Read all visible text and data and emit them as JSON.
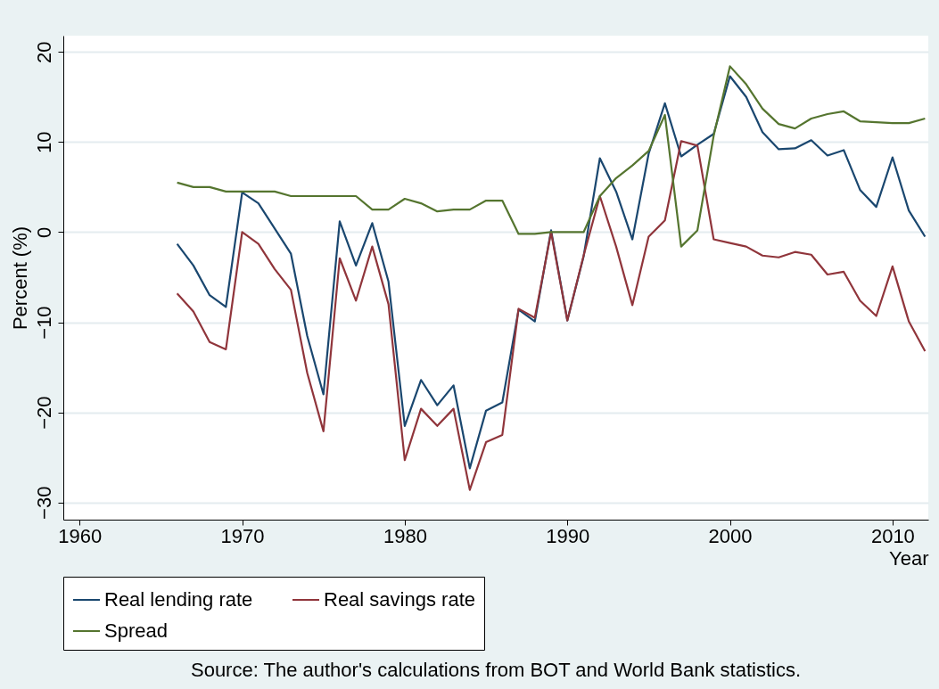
{
  "chart_data": {
    "type": "line",
    "xlabel": "Year",
    "ylabel": "Percent (%)",
    "x": [
      1966,
      1967,
      1968,
      1969,
      1970,
      1971,
      1972,
      1973,
      1974,
      1975,
      1976,
      1977,
      1978,
      1979,
      1980,
      1981,
      1982,
      1983,
      1984,
      1985,
      1986,
      1987,
      1988,
      1989,
      1990,
      1991,
      1992,
      1993,
      1994,
      1995,
      1996,
      1997,
      1998,
      1999,
      2000,
      2001,
      2002,
      2003,
      2004,
      2005,
      2006,
      2007,
      2008,
      2009,
      2010,
      2011,
      2012
    ],
    "series": [
      {
        "name": "Real lending rate",
        "color": "#1a476f",
        "values": [
          -1.3,
          -3.7,
          -7,
          -8.3,
          4.4,
          3.2,
          0.4,
          -2.4,
          -11.5,
          -18,
          1.2,
          -3.7,
          1,
          -5.5,
          -21.5,
          -16.4,
          -19.2,
          -17,
          -26.2,
          -19.8,
          -18.9,
          -8.6,
          -9.9,
          0.2,
          -9.8,
          -2.7,
          8.2,
          4.5,
          -0.8,
          8.7,
          14.3,
          8.4,
          9.7,
          10.9,
          17.3,
          15,
          11.1,
          9.2,
          9.3,
          10.2,
          8.5,
          9.1,
          4.7,
          2.8,
          8.3,
          2.4,
          -0.5
        ]
      },
      {
        "name": "Real savings rate",
        "color": "#90353b",
        "values": [
          -6.8,
          -8.8,
          -12.2,
          -13,
          0,
          -1.3,
          -4.1,
          -6.4,
          -15.6,
          -22.1,
          -2.9,
          -7.6,
          -1.6,
          -8,
          -25.3,
          -19.6,
          -21.5,
          -19.6,
          -28.6,
          -23.3,
          -22.5,
          -8.5,
          -9.5,
          0,
          -9.8,
          -2.6,
          4,
          -1.6,
          -8.1,
          -0.5,
          1.3,
          10.1,
          9.6,
          -0.8,
          -1.2,
          -1.6,
          -2.6,
          -2.8,
          -2.2,
          -2.5,
          -4.7,
          -4.4,
          -7.6,
          -9.3,
          -3.8,
          -9.9,
          -13.2
        ]
      },
      {
        "name": "Spread",
        "color": "#55752f",
        "values": [
          5.5,
          5,
          5,
          4.5,
          4.5,
          4.5,
          4.5,
          4,
          4,
          4,
          4,
          4,
          2.5,
          2.5,
          3.7,
          3.2,
          2.3,
          2.5,
          2.5,
          3.5,
          3.5,
          -0.2,
          -0.2,
          0,
          0,
          0,
          4,
          6,
          7.4,
          9,
          13,
          -1.6,
          0.2,
          10.7,
          18.4,
          16.4,
          13.7,
          12,
          11.5,
          12.6,
          13.1,
          13.4,
          12.3,
          12.2,
          12.1,
          12.1,
          12.6
        ]
      }
    ],
    "xlim": [
      1959,
      2012.2
    ],
    "xticks": [
      1960,
      1970,
      1980,
      1990,
      2000,
      2010
    ],
    "ylim": [
      -31.9,
      21.8
    ],
    "yticks": [
      -30,
      -20,
      -10,
      0,
      10,
      20
    ],
    "grid": "y",
    "legend": "bottom",
    "marker": "none",
    "line_style": "solid",
    "annotations": [
      "Source: The author's calculations from BOT and World Bank statistics."
    ]
  }
}
